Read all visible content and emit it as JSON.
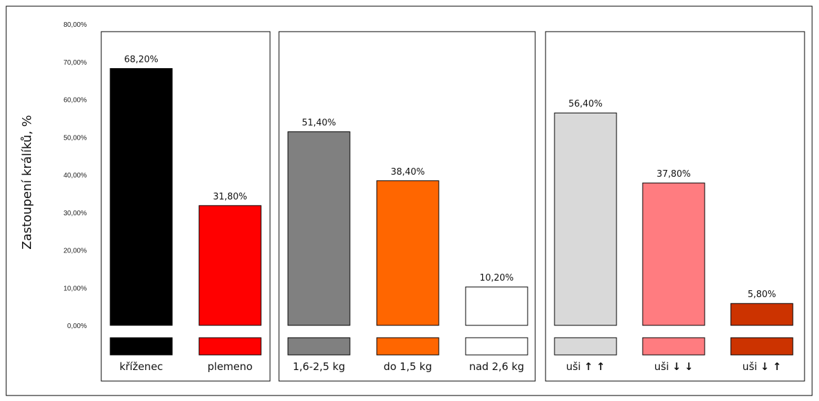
{
  "chart_data": {
    "type": "bar",
    "title": "",
    "xlabel": "",
    "ylabel": "Zastoupení králíků, %",
    "ylim": [
      0,
      80
    ],
    "y_ticks": [
      "0,00%",
      "10,00%",
      "20,00%",
      "30,00%",
      "40,00%",
      "50,00%",
      "60,00%",
      "70,00%",
      "80,00%"
    ],
    "grid": false,
    "legend": "none",
    "groups": [
      {
        "categories": [
          {
            "label": "kříženec",
            "value": 68.2,
            "value_label": "68,20%",
            "color": "#000000"
          },
          {
            "label": "plemeno",
            "value": 31.8,
            "value_label": "31,80%",
            "color": "#ff0000"
          }
        ]
      },
      {
        "categories": [
          {
            "label": "1,6-2,5 kg",
            "value": 51.4,
            "value_label": "51,40%",
            "color": "#808080"
          },
          {
            "label": "do 1,5 kg",
            "value": 38.4,
            "value_label": "38,40%",
            "color": "#ff6600"
          },
          {
            "label": "nad 2,6 kg",
            "value": 10.2,
            "value_label": "10,20%",
            "color": "#ffffff"
          }
        ]
      },
      {
        "categories": [
          {
            "label": "uši",
            "arrows": "↑↑",
            "value": 56.4,
            "value_label": "56,40%",
            "color": "#d9d9d9"
          },
          {
            "label": "uši",
            "arrows": "↓↓",
            "value": 37.8,
            "value_label": "37,80%",
            "color": "#ff7c80"
          },
          {
            "label": "uši",
            "arrows": "↓↑",
            "value": 5.8,
            "value_label": "5,80%",
            "color": "#cc3300"
          }
        ]
      }
    ]
  }
}
